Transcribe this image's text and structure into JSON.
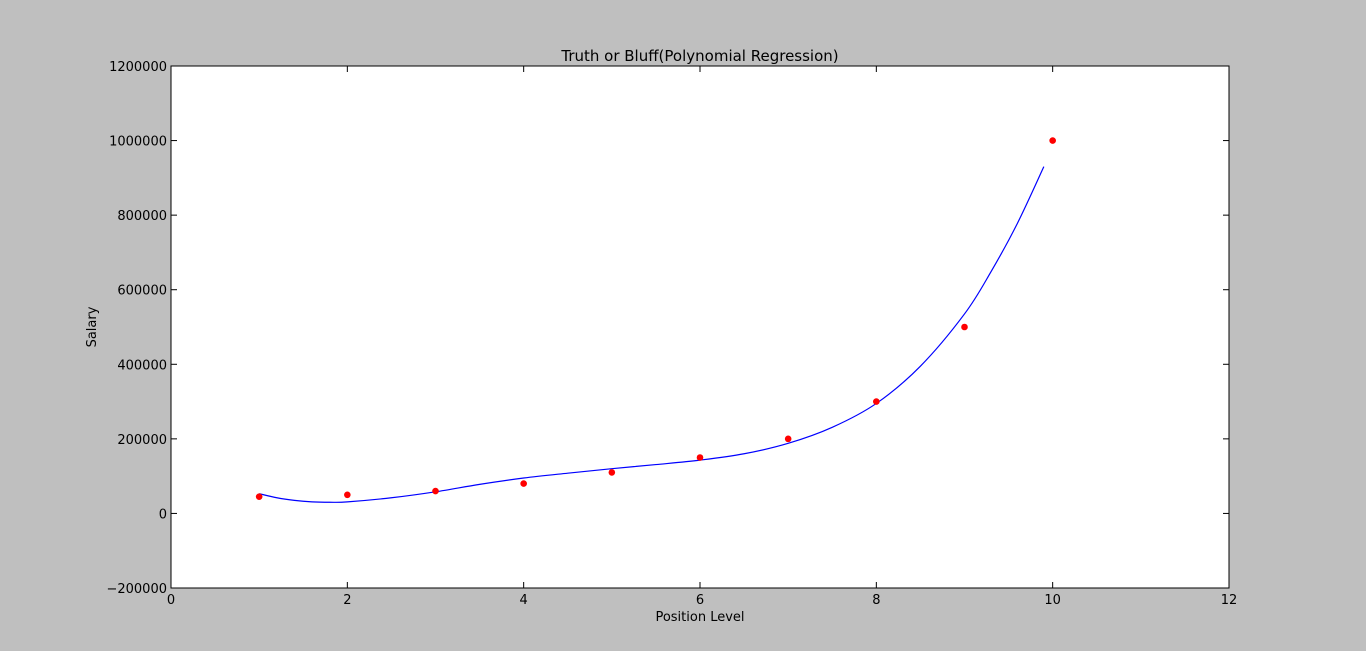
{
  "chart_data": {
    "type": "scatter",
    "title": "Truth or Bluff(Polynomial Regression)",
    "xlabel": "Position Level",
    "ylabel": "Salary",
    "xlim": [
      0,
      12
    ],
    "ylim": [
      -200000,
      1200000
    ],
    "x_ticks": [
      0,
      2,
      4,
      6,
      8,
      10,
      12
    ],
    "y_ticks": [
      -200000,
      0,
      200000,
      400000,
      600000,
      800000,
      1000000,
      1200000
    ],
    "grid": false,
    "legend": "none",
    "series": [
      {
        "kind": "scatter",
        "color": "#ff0000",
        "x": [
          1,
          2,
          3,
          4,
          5,
          6,
          7,
          8,
          9,
          10
        ],
        "y": [
          45000,
          50000,
          60000,
          80000,
          110000,
          150000,
          200000,
          300000,
          500000,
          1000000
        ]
      },
      {
        "kind": "line",
        "color": "#0000ff",
        "x": [
          1.0,
          1.2,
          1.4,
          1.6,
          1.8,
          2.0,
          2.5,
          3.0,
          3.5,
          4.0,
          4.5,
          5.0,
          5.5,
          6.0,
          6.5,
          7.0,
          7.5,
          8.0,
          8.5,
          9.0,
          9.3,
          9.6,
          9.9
        ],
        "y": [
          53000,
          42000,
          35000,
          31000,
          30000,
          31000,
          42000,
          58000,
          78000,
          95000,
          108000,
          120000,
          131000,
          143000,
          160000,
          188000,
          231000,
          295000,
          395000,
          535000,
          648000,
          778000,
          930000
        ]
      }
    ]
  }
}
